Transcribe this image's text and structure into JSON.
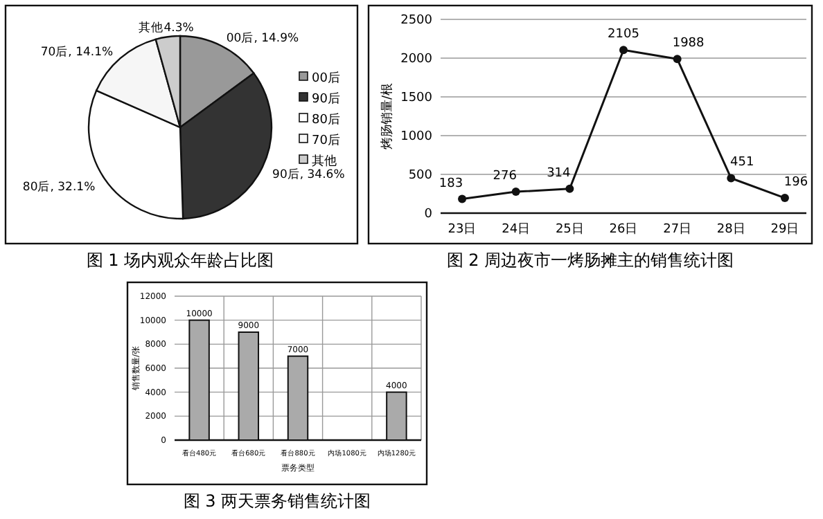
{
  "chart_data": [
    {
      "type": "pie",
      "title": "图 1  场内观众年龄占比图",
      "categories": [
        "00后",
        "90后",
        "80后",
        "70后",
        "其他"
      ],
      "values": [
        14.9,
        34.6,
        32.1,
        14.1,
        4.3
      ],
      "colors": [
        "#999999",
        "#333333",
        "#ffffff",
        "#f6f6f6",
        "#cccccc"
      ],
      "value_labels": [
        "00后, 14.9%",
        "90后, 34.6%",
        "80后, 32.1%",
        "70后, 14.1%",
        "其他4.3%"
      ],
      "legend": "right"
    },
    {
      "type": "line",
      "title": "图 2  周边夜市一烤肠摊主的销售统计图",
      "ylabel": "烤肠销量/根",
      "categories": [
        "23日",
        "24日",
        "25日",
        "26日",
        "27日",
        "28日",
        "29日"
      ],
      "series": [
        {
          "color": "#111111",
          "values": [
            183,
            276,
            314,
            2105,
            1988,
            451,
            196
          ]
        }
      ],
      "ylim": [
        0,
        2500
      ],
      "yticks": [
        0,
        500,
        1000,
        1500,
        2000,
        2500
      ],
      "grid": "y",
      "marker": "circle",
      "data_labels": true
    },
    {
      "type": "bar",
      "title": "图 3  两天票务销售统计图",
      "xlabel": "票务类型",
      "ylabel": "销售数量/张",
      "categories": [
        "看台480元",
        "看台680元",
        "看台880元",
        "内场1080元",
        "内场1280元"
      ],
      "series": [
        {
          "color": "#aaaaaa",
          "values": [
            10000,
            9000,
            7000,
            null,
            4000
          ]
        }
      ],
      "ylim": [
        0,
        12000
      ],
      "yticks": [
        0,
        2000,
        4000,
        6000,
        8000,
        10000,
        12000
      ],
      "grid": true,
      "data_labels": true
    }
  ]
}
